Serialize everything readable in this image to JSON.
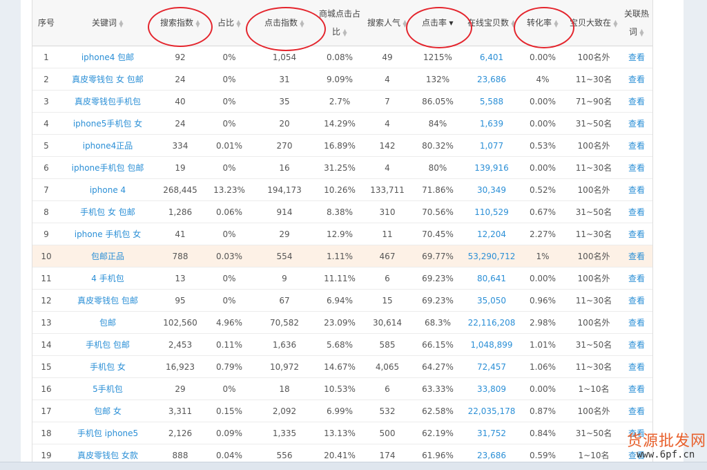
{
  "columns": [
    {
      "label": "序号",
      "sortable": false
    },
    {
      "label": "关键词",
      "sortable": true
    },
    {
      "label": "搜索指数",
      "sortable": true
    },
    {
      "label": "占比",
      "sortable": true
    },
    {
      "label": "点击指数",
      "sortable": true
    },
    {
      "label": "商城点击占比",
      "sortable": true
    },
    {
      "label": "搜索人气",
      "sortable": true
    },
    {
      "label": "点击率",
      "sortable": true,
      "active": true
    },
    {
      "label": "在线宝贝数",
      "sortable": true
    },
    {
      "label": "转化率",
      "sortable": true
    },
    {
      "label": "宝贝大致在",
      "sortable": true
    },
    {
      "label": "关联热词",
      "sortable": true
    }
  ],
  "action_label": "查看",
  "rows": [
    {
      "no": "1",
      "keyword": "iphone4 包邮",
      "search": "92",
      "share": "0%",
      "click": "1,054",
      "mall": "0.08%",
      "pop": "49",
      "ctr": "1215%",
      "items": "6,401",
      "conv": "0.00%",
      "rank": "100名外"
    },
    {
      "no": "2",
      "keyword": "真皮零钱包 女 包邮",
      "search": "24",
      "share": "0%",
      "click": "31",
      "mall": "9.09%",
      "pop": "4",
      "ctr": "132%",
      "items": "23,686",
      "conv": "4%",
      "rank": "11~30名"
    },
    {
      "no": "3",
      "keyword": "真皮零钱包手机包",
      "search": "40",
      "share": "0%",
      "click": "35",
      "mall": "2.7%",
      "pop": "7",
      "ctr": "86.05%",
      "items": "5,588",
      "conv": "0.00%",
      "rank": "71~90名"
    },
    {
      "no": "4",
      "keyword": "iphone5手机包 女",
      "search": "24",
      "share": "0%",
      "click": "20",
      "mall": "14.29%",
      "pop": "4",
      "ctr": "84%",
      "items": "1,639",
      "conv": "0.00%",
      "rank": "31~50名"
    },
    {
      "no": "5",
      "keyword": "iphone4正品",
      "search": "334",
      "share": "0.01%",
      "click": "270",
      "mall": "16.89%",
      "pop": "142",
      "ctr": "80.32%",
      "items": "1,077",
      "conv": "0.53%",
      "rank": "100名外"
    },
    {
      "no": "6",
      "keyword": "iphone手机包 包邮",
      "search": "19",
      "share": "0%",
      "click": "16",
      "mall": "31.25%",
      "pop": "4",
      "ctr": "80%",
      "items": "139,916",
      "conv": "0.00%",
      "rank": "11~30名"
    },
    {
      "no": "7",
      "keyword": "iphone 4",
      "search": "268,445",
      "share": "13.23%",
      "click": "194,173",
      "mall": "10.26%",
      "pop": "133,711",
      "ctr": "71.86%",
      "items": "30,349",
      "conv": "0.52%",
      "rank": "100名外"
    },
    {
      "no": "8",
      "keyword": "手机包 女 包邮",
      "search": "1,286",
      "share": "0.06%",
      "click": "914",
      "mall": "8.38%",
      "pop": "310",
      "ctr": "70.56%",
      "items": "110,529",
      "conv": "0.67%",
      "rank": "31~50名"
    },
    {
      "no": "9",
      "keyword": "iphone 手机包 女",
      "search": "41",
      "share": "0%",
      "click": "29",
      "mall": "12.9%",
      "pop": "11",
      "ctr": "70.45%",
      "items": "12,204",
      "conv": "2.27%",
      "rank": "11~30名"
    },
    {
      "no": "10",
      "keyword": "包邮正品",
      "search": "788",
      "share": "0.03%",
      "click": "554",
      "mall": "1.11%",
      "pop": "467",
      "ctr": "69.77%",
      "items": "53,290,712",
      "conv": "1%",
      "rank": "100名外",
      "highlight": true
    },
    {
      "no": "11",
      "keyword": "4 手机包",
      "search": "13",
      "share": "0%",
      "click": "9",
      "mall": "11.11%",
      "pop": "6",
      "ctr": "69.23%",
      "items": "80,641",
      "conv": "0.00%",
      "rank": "100名外"
    },
    {
      "no": "12",
      "keyword": "真皮零钱包 包邮",
      "search": "95",
      "share": "0%",
      "click": "67",
      "mall": "6.94%",
      "pop": "15",
      "ctr": "69.23%",
      "items": "35,050",
      "conv": "0.96%",
      "rank": "11~30名"
    },
    {
      "no": "13",
      "keyword": "包邮",
      "search": "102,560",
      "share": "4.96%",
      "click": "70,582",
      "mall": "23.09%",
      "pop": "30,614",
      "ctr": "68.3%",
      "items": "22,116,208",
      "conv": "2.98%",
      "rank": "100名外"
    },
    {
      "no": "14",
      "keyword": "手机包 包邮",
      "search": "2,453",
      "share": "0.11%",
      "click": "1,636",
      "mall": "5.68%",
      "pop": "585",
      "ctr": "66.15%",
      "items": "1,048,899",
      "conv": "1.01%",
      "rank": "31~50名"
    },
    {
      "no": "15",
      "keyword": "手机包 女",
      "search": "16,923",
      "share": "0.79%",
      "click": "10,972",
      "mall": "14.67%",
      "pop": "4,065",
      "ctr": "64.27%",
      "items": "72,457",
      "conv": "1.06%",
      "rank": "11~30名"
    },
    {
      "no": "16",
      "keyword": "5手机包",
      "search": "29",
      "share": "0%",
      "click": "18",
      "mall": "10.53%",
      "pop": "6",
      "ctr": "63.33%",
      "items": "33,809",
      "conv": "0.00%",
      "rank": "1~10名"
    },
    {
      "no": "17",
      "keyword": "包邮 女",
      "search": "3,311",
      "share": "0.15%",
      "click": "2,092",
      "mall": "6.99%",
      "pop": "532",
      "ctr": "62.58%",
      "items": "22,035,178",
      "conv": "0.87%",
      "rank": "100名外"
    },
    {
      "no": "18",
      "keyword": "手机包 iphone5",
      "search": "2,126",
      "share": "0.09%",
      "click": "1,335",
      "mall": "13.13%",
      "pop": "500",
      "ctr": "62.19%",
      "items": "31,752",
      "conv": "0.84%",
      "rank": "31~50名"
    },
    {
      "no": "19",
      "keyword": "真皮零钱包 女款",
      "search": "888",
      "share": "0.04%",
      "click": "556",
      "mall": "20.41%",
      "pop": "174",
      "ctr": "61.96%",
      "items": "23,686",
      "conv": "0.59%",
      "rank": "1~10名"
    }
  ],
  "watermark": {
    "logo": "货源批发网",
    "url": "www.6pf.cn"
  },
  "colors": {
    "link": "#2b8fd6",
    "highlight_row": "#fdf1e6",
    "annotation": "#e4252d"
  }
}
